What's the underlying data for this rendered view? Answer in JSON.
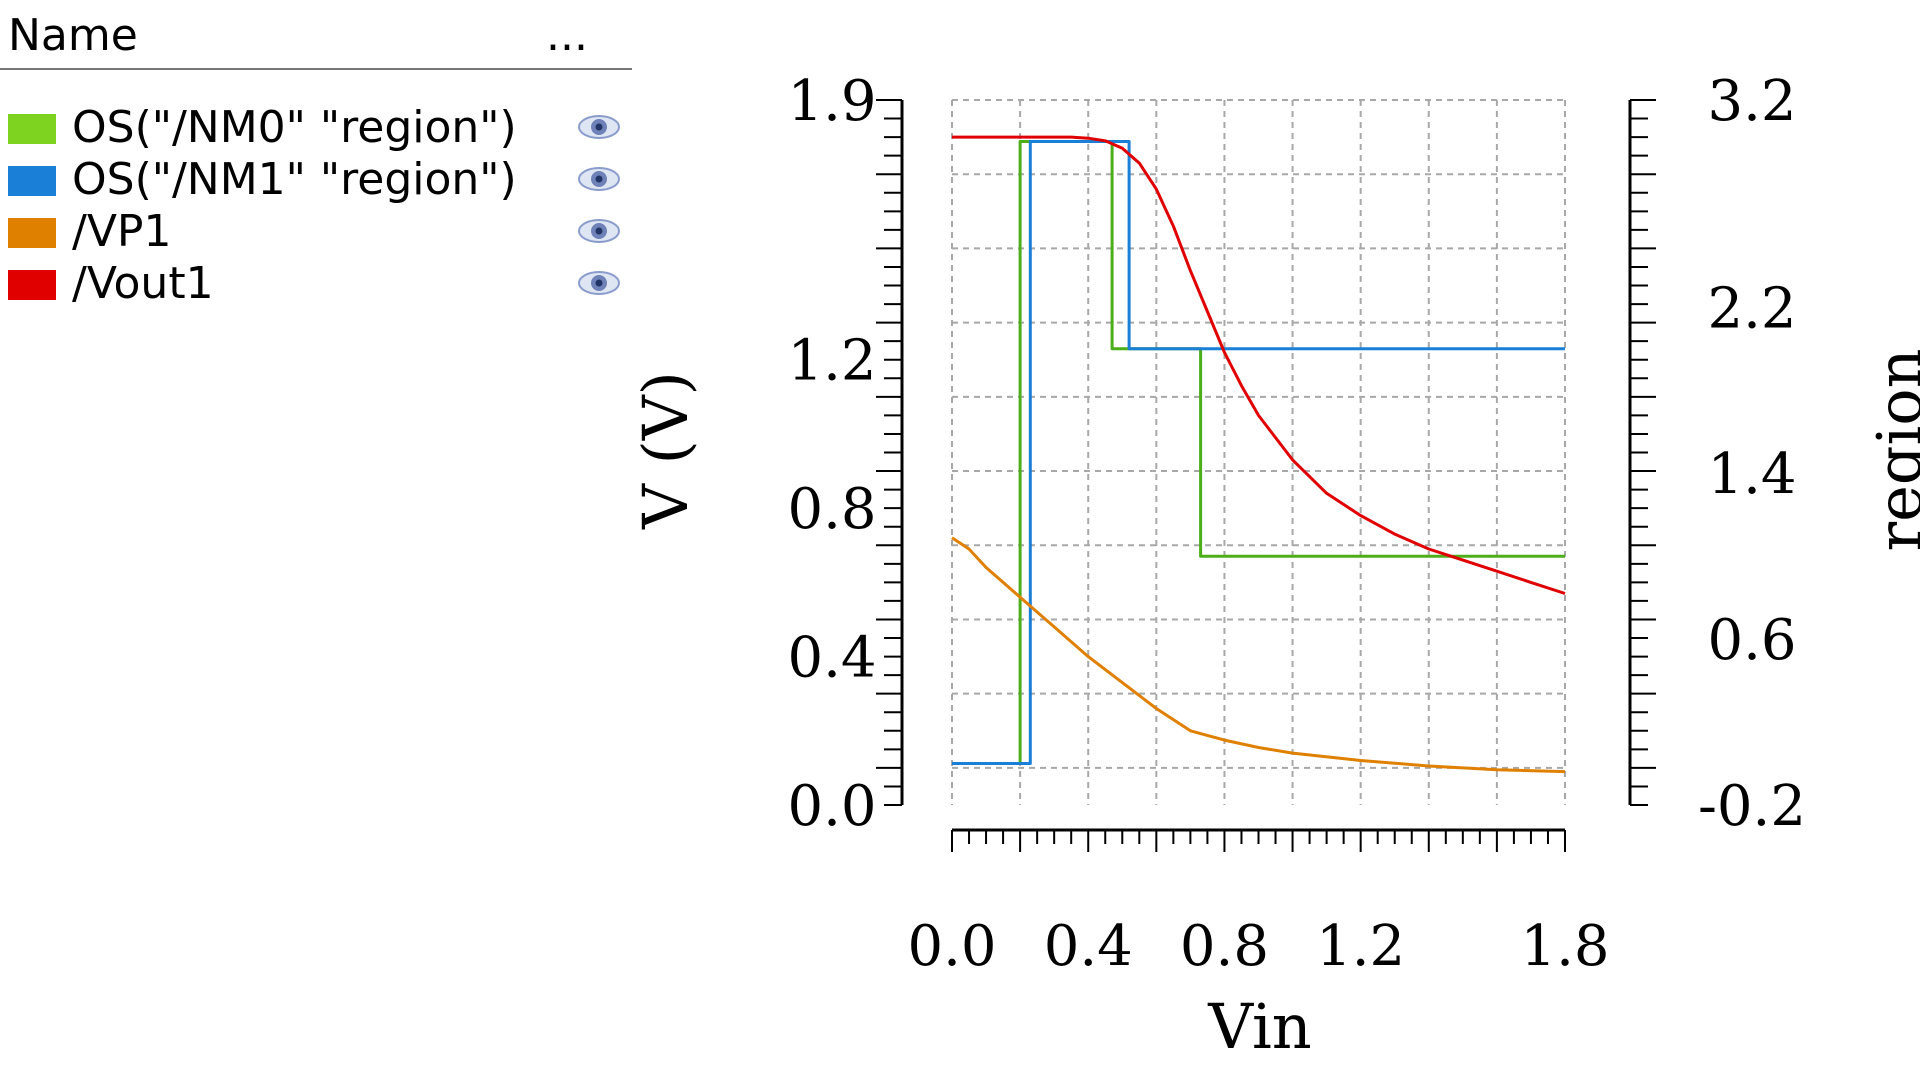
{
  "legend": {
    "header": {
      "name_label": "Name",
      "more_label": "..."
    },
    "items": [
      {
        "label": "OS(\"/NM0\" \"region\")",
        "color": "#7ed321",
        "visibility_icon": "eye-icon"
      },
      {
        "label": "OS(\"/NM1\" \"region\")",
        "color": "#1a7fd6",
        "visibility_icon": "eye-icon"
      },
      {
        "label": "/VP1",
        "color": "#e08000",
        "visibility_icon": "eye-icon"
      },
      {
        "label": "/Vout1",
        "color": "#e00000",
        "visibility_icon": "eye-icon"
      }
    ]
  },
  "chart_data": {
    "type": "line",
    "xlabel": "Vin",
    "ylabel": "V (V)",
    "y2label": "region",
    "xlim": [
      0,
      1.8
    ],
    "ylim": [
      0,
      1.9
    ],
    "y2lim": [
      -0.2,
      3.2
    ],
    "x_ticks": [
      "0.0",
      "0.4",
      "0.8",
      "1.2",
      "1.8"
    ],
    "y_ticks": [
      "0.0",
      "0.4",
      "0.8",
      "1.2",
      "1.9"
    ],
    "y2_ticks": [
      "-0.2",
      "0.6",
      "1.4",
      "2.2",
      "3.2"
    ],
    "grid": true,
    "series": [
      {
        "name": "OS(\"/NM0\" \"region\")",
        "axis": "right",
        "color": "#4caf1a",
        "x": [
          0,
          0.2,
          0.2,
          0.47,
          0.47,
          0.73,
          0.73,
          1.8
        ],
        "y": [
          0,
          0,
          3,
          3,
          2,
          2,
          1,
          1
        ]
      },
      {
        "name": "OS(\"/NM1\" \"region\")",
        "axis": "right",
        "color": "#1a7fd6",
        "x": [
          0,
          0.23,
          0.23,
          0.52,
          0.52,
          1.8
        ],
        "y": [
          0,
          0,
          3,
          3,
          2,
          2
        ]
      },
      {
        "name": "/VP1",
        "axis": "left",
        "color": "#e08000",
        "x": [
          0,
          0.05,
          0.1,
          0.2,
          0.3,
          0.4,
          0.5,
          0.6,
          0.7,
          0.8,
          0.9,
          1.0,
          1.2,
          1.4,
          1.6,
          1.8
        ],
        "y": [
          0.72,
          0.69,
          0.64,
          0.56,
          0.48,
          0.4,
          0.33,
          0.26,
          0.2,
          0.175,
          0.155,
          0.14,
          0.12,
          0.105,
          0.095,
          0.09
        ]
      },
      {
        "name": "/Vout1",
        "axis": "left",
        "color": "#e00000",
        "x": [
          0,
          0.2,
          0.35,
          0.4,
          0.45,
          0.5,
          0.55,
          0.6,
          0.65,
          0.7,
          0.75,
          0.8,
          0.85,
          0.9,
          1.0,
          1.1,
          1.2,
          1.3,
          1.4,
          1.5,
          1.6,
          1.7,
          1.8
        ],
        "y": [
          1.8,
          1.8,
          1.8,
          1.797,
          1.79,
          1.77,
          1.73,
          1.66,
          1.56,
          1.44,
          1.33,
          1.22,
          1.13,
          1.05,
          0.93,
          0.84,
          0.78,
          0.73,
          0.69,
          0.66,
          0.63,
          0.6,
          0.57
        ]
      }
    ]
  }
}
